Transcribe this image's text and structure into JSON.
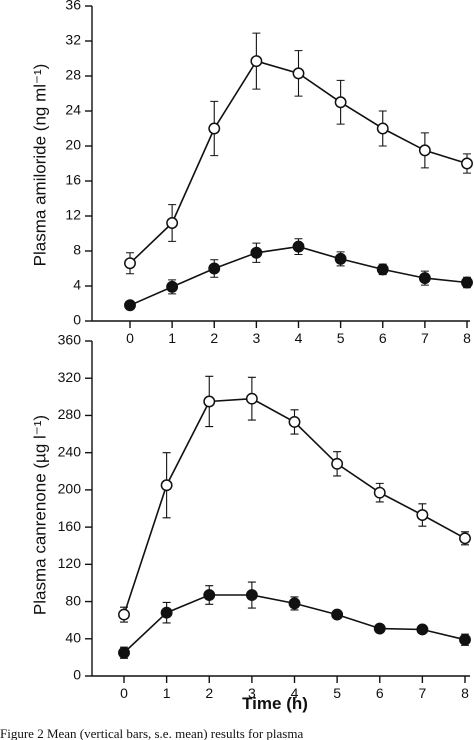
{
  "chart_data": [
    {
      "type": "line",
      "title": "",
      "xlabel": "",
      "ylabel": "Plasma amiloride (ng ml⁻¹)",
      "xlim": [
        0,
        8
      ],
      "ylim": [
        0,
        36
      ],
      "x_ticks": [
        0,
        1,
        2,
        3,
        4,
        5,
        6,
        7,
        8
      ],
      "y_ticks": [
        0,
        4,
        8,
        12,
        16,
        20,
        24,
        28,
        32,
        36
      ],
      "grid": false,
      "series": [
        {
          "marker": "open-circle",
          "x": [
            0,
            1,
            2,
            3,
            4,
            5,
            6,
            7,
            8
          ],
          "y": [
            6.6,
            11.2,
            22.0,
            29.7,
            28.3,
            25.0,
            22.0,
            19.5,
            18.0
          ],
          "error": [
            1.2,
            2.1,
            3.1,
            3.2,
            2.6,
            2.5,
            2.0,
            2.0,
            1.1
          ]
        },
        {
          "marker": "filled-circle",
          "x": [
            0,
            1,
            2,
            3,
            4,
            5,
            6,
            7,
            8
          ],
          "y": [
            1.8,
            3.9,
            6.0,
            7.8,
            8.5,
            7.1,
            5.9,
            4.9,
            4.4
          ],
          "error": [
            0.3,
            0.8,
            1.0,
            1.1,
            0.9,
            0.8,
            0.6,
            0.8,
            0.6
          ]
        }
      ]
    },
    {
      "type": "line",
      "title": "",
      "xlabel": "Time (h)",
      "ylabel": "Plasma canrenone (µg l⁻¹)",
      "xlim": [
        0,
        8
      ],
      "ylim": [
        0,
        360
      ],
      "x_ticks": [
        0,
        1,
        2,
        3,
        4,
        5,
        6,
        7,
        8
      ],
      "y_ticks": [
        0,
        40,
        80,
        120,
        160,
        200,
        240,
        280,
        320,
        360
      ],
      "grid": false,
      "series": [
        {
          "marker": "open-circle",
          "x": [
            0,
            1,
            2,
            3,
            4,
            5,
            6,
            7,
            8
          ],
          "y": [
            66,
            205,
            295,
            298,
            273,
            228,
            197,
            173,
            148
          ],
          "error": [
            8,
            35,
            27,
            23,
            13,
            13,
            10,
            12,
            7
          ]
        },
        {
          "marker": "filled-circle",
          "x": [
            0,
            1,
            2,
            3,
            4,
            5,
            6,
            7,
            8
          ],
          "y": [
            25,
            68,
            87,
            87,
            78,
            66,
            51,
            50,
            39
          ],
          "error": [
            6,
            11,
            10,
            14,
            7,
            4,
            4,
            4,
            6
          ]
        }
      ]
    }
  ],
  "caption": {
    "text": "Figure 2   Mean (vertical bars, s.e. mean) results for plasma"
  }
}
